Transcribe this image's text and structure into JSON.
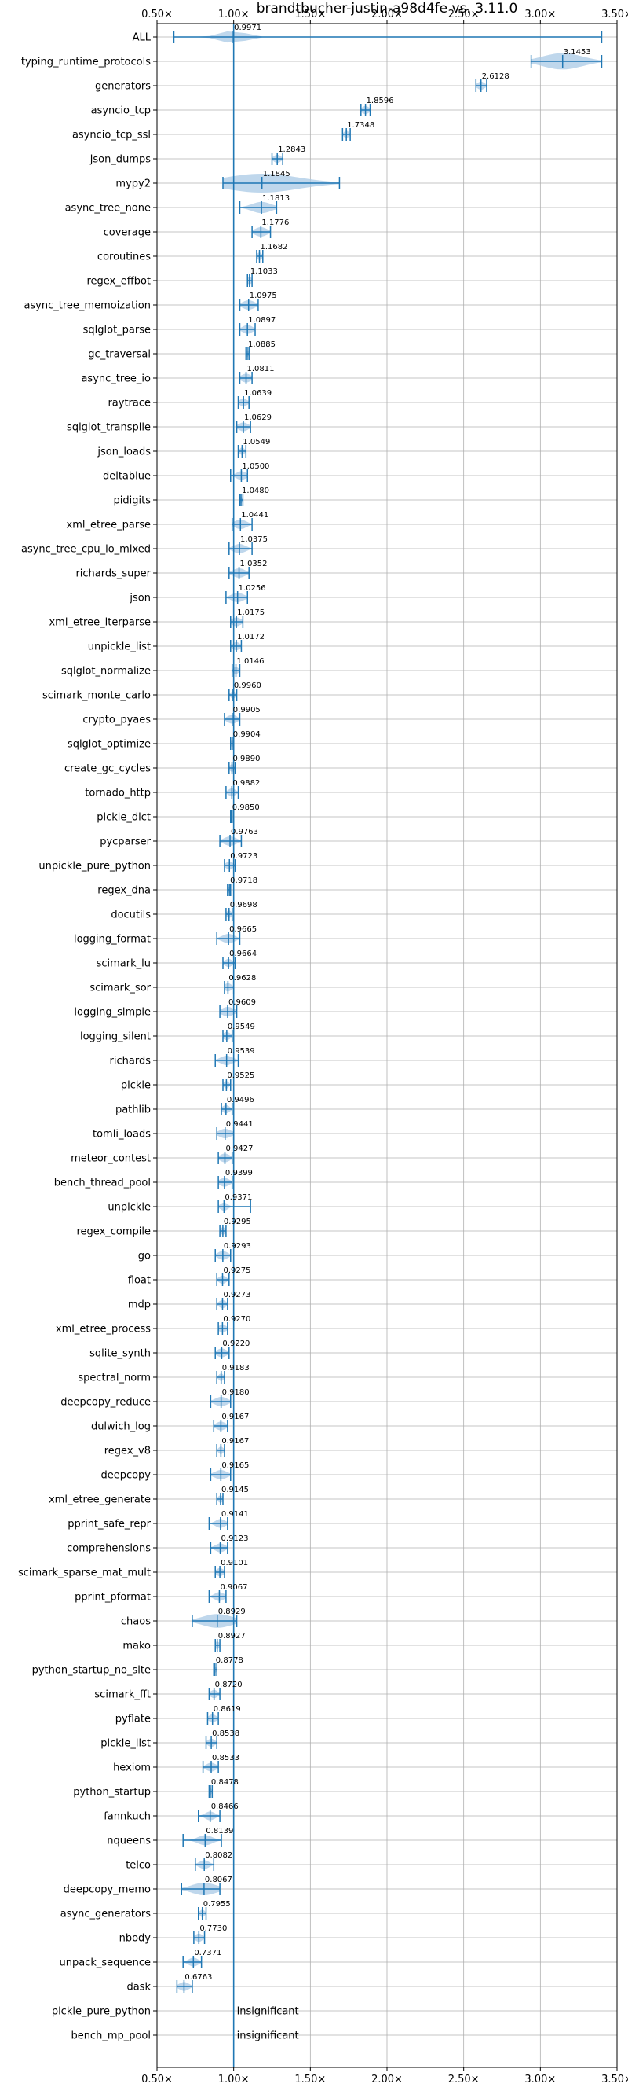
{
  "chart_data": {
    "type": "violin",
    "title": "brandtbucher-justin-a98d4fe vs. 3.11.0",
    "xlim": [
      0.5,
      3.5
    ],
    "x_ticks": [
      0.5,
      1.0,
      1.5,
      2.0,
      2.5,
      3.0,
      3.5
    ],
    "x_tick_labels": [
      "0.50×",
      "1.00×",
      "1.50×",
      "2.00×",
      "2.50×",
      "3.00×",
      "3.50×"
    ],
    "reference_line": 1.0,
    "grid": true,
    "colors": {
      "violin": "#a9c9e6",
      "line": "#1f77b4"
    },
    "series": [
      {
        "name": "ALL",
        "median": 0.9971,
        "label": "0.9971",
        "min": 0.61,
        "max": 3.4,
        "spread": 0.1
      },
      {
        "name": "typing_runtime_protocols",
        "median": 3.1453,
        "label": "3.1453",
        "min": 2.94,
        "max": 3.4,
        "spread": 0.16
      },
      {
        "name": "generators",
        "median": 2.6128,
        "label": "2.6128",
        "min": 2.58,
        "max": 2.65,
        "spread": 0.03
      },
      {
        "name": "asyncio_tcp",
        "median": 1.8596,
        "label": "1.8596",
        "min": 1.83,
        "max": 1.89,
        "spread": 0.03
      },
      {
        "name": "asyncio_tcp_ssl",
        "median": 1.7348,
        "label": "1.7348",
        "min": 1.71,
        "max": 1.76,
        "spread": 0.02
      },
      {
        "name": "json_dumps",
        "median": 1.2843,
        "label": "1.2843",
        "min": 1.25,
        "max": 1.32,
        "spread": 0.03
      },
      {
        "name": "mypy2",
        "median": 1.1845,
        "label": "1.1845",
        "min": 0.93,
        "max": 1.69,
        "spread": 0.3
      },
      {
        "name": "async_tree_none",
        "median": 1.1813,
        "label": "1.1813",
        "min": 1.04,
        "max": 1.28,
        "spread": 0.08
      },
      {
        "name": "coverage",
        "median": 1.1776,
        "label": "1.1776",
        "min": 1.12,
        "max": 1.24,
        "spread": 0.05
      },
      {
        "name": "coroutines",
        "median": 1.1682,
        "label": "1.1682",
        "min": 1.15,
        "max": 1.19,
        "spread": 0.02
      },
      {
        "name": "regex_effbot",
        "median": 1.1033,
        "label": "1.1033",
        "min": 1.09,
        "max": 1.12,
        "spread": 0.02
      },
      {
        "name": "async_tree_memoization",
        "median": 1.0975,
        "label": "1.0975",
        "min": 1.04,
        "max": 1.16,
        "spread": 0.05
      },
      {
        "name": "sqlglot_parse",
        "median": 1.0897,
        "label": "1.0897",
        "min": 1.04,
        "max": 1.14,
        "spread": 0.04
      },
      {
        "name": "gc_traversal",
        "median": 1.0885,
        "label": "1.0885",
        "min": 1.08,
        "max": 1.1,
        "spread": 0.01
      },
      {
        "name": "async_tree_io",
        "median": 1.0811,
        "label": "1.0811",
        "min": 1.04,
        "max": 1.12,
        "spread": 0.04
      },
      {
        "name": "raytrace",
        "median": 1.0639,
        "label": "1.0639",
        "min": 1.03,
        "max": 1.1,
        "spread": 0.03
      },
      {
        "name": "sqlglot_transpile",
        "median": 1.0629,
        "label": "1.0629",
        "min": 1.02,
        "max": 1.11,
        "spread": 0.04
      },
      {
        "name": "json_loads",
        "median": 1.0549,
        "label": "1.0549",
        "min": 1.03,
        "max": 1.08,
        "spread": 0.02
      },
      {
        "name": "deltablue",
        "median": 1.05,
        "label": "1.0500",
        "min": 0.98,
        "max": 1.09,
        "spread": 0.04
      },
      {
        "name": "pidigits",
        "median": 1.048,
        "label": "1.0480",
        "min": 1.04,
        "max": 1.06,
        "spread": 0.01
      },
      {
        "name": "xml_etree_parse",
        "median": 1.0441,
        "label": "1.0441",
        "min": 0.99,
        "max": 1.12,
        "spread": 0.05
      },
      {
        "name": "async_tree_cpu_io_mixed",
        "median": 1.0375,
        "label": "1.0375",
        "min": 0.97,
        "max": 1.12,
        "spread": 0.05
      },
      {
        "name": "richards_super",
        "median": 1.0352,
        "label": "1.0352",
        "min": 0.97,
        "max": 1.1,
        "spread": 0.05
      },
      {
        "name": "json",
        "median": 1.0256,
        "label": "1.0256",
        "min": 0.95,
        "max": 1.09,
        "spread": 0.05
      },
      {
        "name": "xml_etree_iterparse",
        "median": 1.0175,
        "label": "1.0175",
        "min": 0.98,
        "max": 1.06,
        "spread": 0.04
      },
      {
        "name": "unpickle_list",
        "median": 1.0172,
        "label": "1.0172",
        "min": 0.98,
        "max": 1.05,
        "spread": 0.03
      },
      {
        "name": "sqlglot_normalize",
        "median": 1.0146,
        "label": "1.0146",
        "min": 0.99,
        "max": 1.04,
        "spread": 0.02
      },
      {
        "name": "scimark_monte_carlo",
        "median": 0.996,
        "label": "0.9960",
        "min": 0.97,
        "max": 1.02,
        "spread": 0.02
      },
      {
        "name": "crypto_pyaes",
        "median": 0.9905,
        "label": "0.9905",
        "min": 0.94,
        "max": 1.04,
        "spread": 0.04
      },
      {
        "name": "sqlglot_optimize",
        "median": 0.9904,
        "label": "0.9904",
        "min": 0.98,
        "max": 1.0,
        "spread": 0.01
      },
      {
        "name": "create_gc_cycles",
        "median": 0.989,
        "label": "0.9890",
        "min": 0.97,
        "max": 1.01,
        "spread": 0.02
      },
      {
        "name": "tornado_http",
        "median": 0.9882,
        "label": "0.9882",
        "min": 0.95,
        "max": 1.03,
        "spread": 0.03
      },
      {
        "name": "pickle_dict",
        "median": 0.985,
        "label": "0.9850",
        "min": 0.98,
        "max": 0.99,
        "spread": 0.01
      },
      {
        "name": "pycparser",
        "median": 0.9763,
        "label": "0.9763",
        "min": 0.91,
        "max": 1.05,
        "spread": 0.05
      },
      {
        "name": "unpickle_pure_python",
        "median": 0.9723,
        "label": "0.9723",
        "min": 0.94,
        "max": 1.01,
        "spread": 0.03
      },
      {
        "name": "regex_dna",
        "median": 0.9718,
        "label": "0.9718",
        "min": 0.96,
        "max": 0.98,
        "spread": 0.01
      },
      {
        "name": "docutils",
        "median": 0.9698,
        "label": "0.9698",
        "min": 0.95,
        "max": 0.99,
        "spread": 0.02
      },
      {
        "name": "logging_format",
        "median": 0.9665,
        "label": "0.9665",
        "min": 0.89,
        "max": 1.04,
        "spread": 0.05
      },
      {
        "name": "scimark_lu",
        "median": 0.9664,
        "label": "0.9664",
        "min": 0.93,
        "max": 1.01,
        "spread": 0.03
      },
      {
        "name": "scimark_sor",
        "median": 0.9628,
        "label": "0.9628",
        "min": 0.94,
        "max": 1.0,
        "spread": 0.03
      },
      {
        "name": "logging_simple",
        "median": 0.9609,
        "label": "0.9609",
        "min": 0.91,
        "max": 1.02,
        "spread": 0.05
      },
      {
        "name": "logging_silent",
        "median": 0.9549,
        "label": "0.9549",
        "min": 0.93,
        "max": 0.99,
        "spread": 0.03
      },
      {
        "name": "richards",
        "median": 0.9539,
        "label": "0.9539",
        "min": 0.88,
        "max": 1.03,
        "spread": 0.05
      },
      {
        "name": "pickle",
        "median": 0.9525,
        "label": "0.9525",
        "min": 0.93,
        "max": 0.98,
        "spread": 0.02
      },
      {
        "name": "pathlib",
        "median": 0.9496,
        "label": "0.9496",
        "min": 0.92,
        "max": 0.99,
        "spread": 0.03
      },
      {
        "name": "tomli_loads",
        "median": 0.9441,
        "label": "0.9441",
        "min": 0.89,
        "max": 1.0,
        "spread": 0.05
      },
      {
        "name": "meteor_contest",
        "median": 0.9427,
        "label": "0.9427",
        "min": 0.9,
        "max": 0.99,
        "spread": 0.04
      },
      {
        "name": "bench_thread_pool",
        "median": 0.9399,
        "label": "0.9399",
        "min": 0.9,
        "max": 0.99,
        "spread": 0.04
      },
      {
        "name": "unpickle",
        "median": 0.9371,
        "label": "0.9371",
        "min": 0.9,
        "max": 1.11,
        "spread": 0.03
      },
      {
        "name": "regex_compile",
        "median": 0.9295,
        "label": "0.9295",
        "min": 0.91,
        "max": 0.95,
        "spread": 0.02
      },
      {
        "name": "go",
        "median": 0.9293,
        "label": "0.9293",
        "min": 0.88,
        "max": 0.98,
        "spread": 0.04
      },
      {
        "name": "float",
        "median": 0.9275,
        "label": "0.9275",
        "min": 0.89,
        "max": 0.97,
        "spread": 0.03
      },
      {
        "name": "mdp",
        "median": 0.9273,
        "label": "0.9273",
        "min": 0.89,
        "max": 0.96,
        "spread": 0.03
      },
      {
        "name": "xml_etree_process",
        "median": 0.927,
        "label": "0.9270",
        "min": 0.9,
        "max": 0.96,
        "spread": 0.03
      },
      {
        "name": "sqlite_synth",
        "median": 0.922,
        "label": "0.9220",
        "min": 0.88,
        "max": 0.97,
        "spread": 0.04
      },
      {
        "name": "spectral_norm",
        "median": 0.9183,
        "label": "0.9183",
        "min": 0.89,
        "max": 0.94,
        "spread": 0.02
      },
      {
        "name": "deepcopy_reduce",
        "median": 0.918,
        "label": "0.9180",
        "min": 0.85,
        "max": 0.98,
        "spread": 0.05
      },
      {
        "name": "dulwich_log",
        "median": 0.9167,
        "label": "0.9167",
        "min": 0.87,
        "max": 0.96,
        "spread": 0.04
      },
      {
        "name": "regex_v8",
        "median": 0.9167,
        "label": "0.9167",
        "min": 0.89,
        "max": 0.94,
        "spread": 0.02
      },
      {
        "name": "deepcopy",
        "median": 0.9165,
        "label": "0.9165",
        "min": 0.85,
        "max": 0.98,
        "spread": 0.05
      },
      {
        "name": "xml_etree_generate",
        "median": 0.9145,
        "label": "0.9145",
        "min": 0.89,
        "max": 0.93,
        "spread": 0.02
      },
      {
        "name": "pprint_safe_repr",
        "median": 0.9141,
        "label": "0.9141",
        "min": 0.84,
        "max": 0.96,
        "spread": 0.04
      },
      {
        "name": "comprehensions",
        "median": 0.9123,
        "label": "0.9123",
        "min": 0.85,
        "max": 0.96,
        "spread": 0.04
      },
      {
        "name": "scimark_sparse_mat_mult",
        "median": 0.9101,
        "label": "0.9101",
        "min": 0.88,
        "max": 0.94,
        "spread": 0.03
      },
      {
        "name": "pprint_pformat",
        "median": 0.9067,
        "label": "0.9067",
        "min": 0.84,
        "max": 0.95,
        "spread": 0.04
      },
      {
        "name": "chaos",
        "median": 0.8929,
        "label": "0.8929",
        "min": 0.73,
        "max": 1.02,
        "spread": 0.12
      },
      {
        "name": "mako",
        "median": 0.8927,
        "label": "0.8927",
        "min": 0.88,
        "max": 0.91,
        "spread": 0.02
      },
      {
        "name": "python_startup_no_site",
        "median": 0.8778,
        "label": "0.8778",
        "min": 0.87,
        "max": 0.89,
        "spread": 0.01
      },
      {
        "name": "scimark_fft",
        "median": 0.872,
        "label": "0.8720",
        "min": 0.84,
        "max": 0.91,
        "spread": 0.03
      },
      {
        "name": "pyflate",
        "median": 0.8619,
        "label": "0.8619",
        "min": 0.83,
        "max": 0.9,
        "spread": 0.03
      },
      {
        "name": "pickle_list",
        "median": 0.8538,
        "label": "0.8538",
        "min": 0.82,
        "max": 0.89,
        "spread": 0.03
      },
      {
        "name": "hexiom",
        "median": 0.8533,
        "label": "0.8533",
        "min": 0.8,
        "max": 0.9,
        "spread": 0.04
      },
      {
        "name": "python_startup",
        "median": 0.8478,
        "label": "0.8478",
        "min": 0.84,
        "max": 0.86,
        "spread": 0.01
      },
      {
        "name": "fannkuch",
        "median": 0.8466,
        "label": "0.8466",
        "min": 0.77,
        "max": 0.91,
        "spread": 0.04
      },
      {
        "name": "nqueens",
        "median": 0.8139,
        "label": "0.8139",
        "min": 0.67,
        "max": 0.92,
        "spread": 0.06
      },
      {
        "name": "telco",
        "median": 0.8082,
        "label": "0.8082",
        "min": 0.75,
        "max": 0.87,
        "spread": 0.04
      },
      {
        "name": "deepcopy_memo",
        "median": 0.8067,
        "label": "0.8067",
        "min": 0.66,
        "max": 0.91,
        "spread": 0.1
      },
      {
        "name": "async_generators",
        "median": 0.7955,
        "label": "0.7955",
        "min": 0.77,
        "max": 0.82,
        "spread": 0.02
      },
      {
        "name": "nbody",
        "median": 0.773,
        "label": "0.7730",
        "min": 0.74,
        "max": 0.81,
        "spread": 0.03
      },
      {
        "name": "unpack_sequence",
        "median": 0.7371,
        "label": "0.7371",
        "min": 0.67,
        "max": 0.79,
        "spread": 0.04
      },
      {
        "name": "dask",
        "median": 0.6763,
        "label": "0.6763",
        "min": 0.63,
        "max": 0.73,
        "spread": 0.04
      },
      {
        "name": "pickle_pure_python",
        "insignificant": true,
        "label": "insignificant"
      },
      {
        "name": "bench_mp_pool",
        "insignificant": true,
        "label": "insignificant"
      }
    ]
  }
}
